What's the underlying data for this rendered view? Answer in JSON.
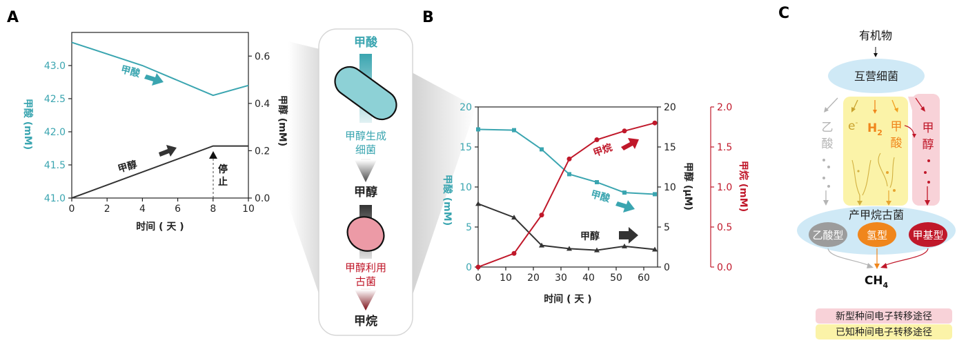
{
  "colors": {
    "teal": "#3aa5b0",
    "dark": "#333333",
    "red": "#c0182a",
    "orange": "#f0861c",
    "gray": "#b4b4b4",
    "lightblue": "#cfe9f6",
    "yellow": "#fbf3a8",
    "pink": "#f8d2d8",
    "cyan_cell": "#8dd1d6",
    "pink_cell": "#ec9aa6"
  },
  "panels": {
    "a": "A",
    "b": "B",
    "c": "C"
  },
  "panel_a": {
    "ylabel_left": "甲酸 (mM)",
    "ylabel_right": "甲醇 (mM)",
    "xlabel": "时间 ( 天 )",
    "formate_label": "甲酸",
    "methanol_label": "甲醇",
    "stop_label": [
      "停",
      "止"
    ]
  },
  "middle": {
    "top_label": "甲酸",
    "bacteria_label": [
      "甲醇生成",
      "细菌"
    ],
    "mid_label": "甲醇",
    "archaea_label": [
      "甲醇利用",
      "古菌"
    ],
    "bottom_label": "甲烷"
  },
  "panel_b": {
    "ylabel_formate": "甲酸 (mM)",
    "ylabel_methanol": "甲醇 (μM)",
    "ylabel_methane": "甲烷 (mM)",
    "xlabel": "时间 ( 天 )",
    "methane_label": "甲烷",
    "formate_label": "甲酸",
    "methanol_label": "甲醇"
  },
  "panel_c": {
    "organics": "有机物",
    "heterotrophs": "互营细菌",
    "acetate": [
      "乙",
      "酸"
    ],
    "electron": "e",
    "electron_sup": "-",
    "h2": "H",
    "h2_sub": "2",
    "formate": [
      "甲",
      "酸"
    ],
    "methanol": [
      "甲",
      "醇"
    ],
    "methanogens": "产甲烷古菌",
    "acetoclastic": "乙酸型",
    "hydrogenotrophic": "氢型",
    "methylotrophic": "甲基型",
    "ch4": "CH",
    "ch4_sub": "4",
    "legend_new": "新型种间电子转移途径",
    "legend_known": "已知种间电子转移途径"
  },
  "chart_data": [
    {
      "type": "line",
      "panel": "A",
      "x": [
        0,
        4,
        8,
        10
      ],
      "xlim": [
        0,
        10
      ],
      "xticks": [
        0,
        2,
        4,
        6,
        8,
        10
      ],
      "series": [
        {
          "name": "甲酸",
          "axis": "left",
          "x": [
            0,
            4,
            8,
            10
          ],
          "values": [
            43.35,
            43.0,
            42.55,
            42.7
          ]
        },
        {
          "name": "甲醇",
          "axis": "right",
          "x": [
            0,
            8,
            10
          ],
          "values": [
            0.0,
            0.22,
            0.22
          ]
        }
      ],
      "ylim_left": [
        41.0,
        43.5
      ],
      "yticks_left": [
        "41.0",
        "41.5",
        "42.0",
        "42.5",
        "43.0"
      ],
      "ylim_right": [
        0.0,
        0.7
      ],
      "yticks_right": [
        "0.0",
        "0.2",
        "0.4",
        "0.6"
      ],
      "annotation": {
        "text": "停止",
        "x": 8
      }
    },
    {
      "type": "line",
      "panel": "B",
      "xlim": [
        0,
        65
      ],
      "xticks": [
        0,
        10,
        20,
        30,
        40,
        50,
        60
      ],
      "series": [
        {
          "name": "甲酸",
          "axis": "formate",
          "unit": "mM",
          "x": [
            0,
            13,
            23,
            33,
            43,
            53,
            64
          ],
          "values": [
            17.2,
            17.1,
            14.7,
            11.6,
            10.6,
            9.3,
            9.1
          ]
        },
        {
          "name": "甲醇",
          "axis": "methanol",
          "unit": "μM",
          "x": [
            0,
            13,
            23,
            33,
            43,
            53,
            64
          ],
          "values": [
            7.9,
            6.2,
            2.7,
            2.3,
            2.1,
            2.6,
            2.2
          ]
        },
        {
          "name": "甲烷",
          "axis": "methane",
          "unit": "mM",
          "x": [
            0,
            13,
            23,
            33,
            43,
            53,
            64
          ],
          "values": [
            0.0,
            0.17,
            0.65,
            1.35,
            1.59,
            1.7,
            1.8
          ]
        }
      ],
      "ylim_formate": [
        0,
        20
      ],
      "yticks_formate": [
        "0",
        "5",
        "10",
        "15",
        "20"
      ],
      "ylim_methanol": [
        0,
        20
      ],
      "yticks_methanol": [
        "0",
        "5",
        "10",
        "15",
        "20"
      ],
      "ylim_methane": [
        0,
        2.0
      ],
      "yticks_methane": [
        "0.0",
        "0.5",
        "1.0",
        "1.5",
        "2.0"
      ]
    }
  ]
}
